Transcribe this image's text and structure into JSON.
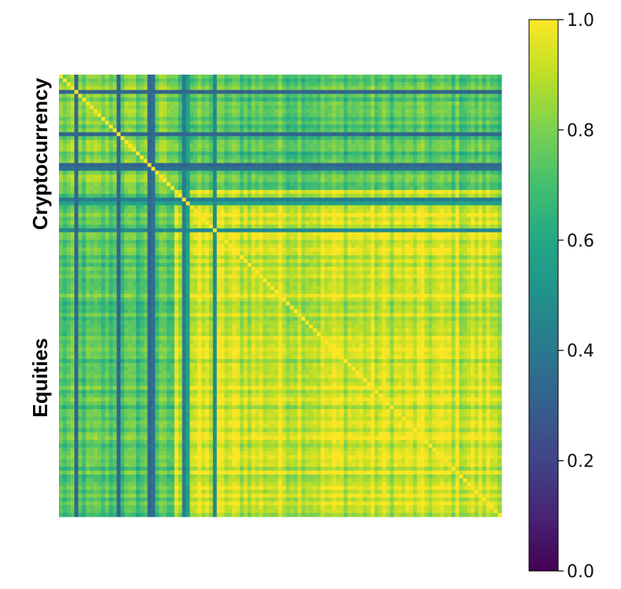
{
  "chart_data": {
    "type": "heatmap",
    "title": "",
    "row_groups": [
      {
        "label": "Cryptocurrency",
        "start": 0,
        "end": 30
      },
      {
        "label": "Equities",
        "start": 30,
        "end": 115
      }
    ],
    "n_assets": 115,
    "value_range": [
      0.0,
      1.0
    ],
    "colormap": "viridis",
    "colorbar": {
      "ticks": [
        0.0,
        0.2,
        0.4,
        0.6,
        0.8,
        1.0
      ],
      "tick_labels": [
        "0.0",
        "0.2",
        "0.4",
        "0.6",
        "0.8",
        "1.0"
      ],
      "placement": "right"
    },
    "block_correlation": {
      "crypto_crypto": 0.78,
      "equity_equity": 0.92,
      "crypto_equity": 0.72
    },
    "low_correlation_assets": [
      {
        "index": 4,
        "value": 0.3
      },
      {
        "index": 15,
        "value": 0.3
      },
      {
        "index": 23,
        "value": 0.3
      },
      {
        "index": 24,
        "value": 0.35
      },
      {
        "index": 32,
        "value": 0.4
      },
      {
        "index": 33,
        "value": 0.55
      },
      {
        "index": 40,
        "value": 0.45
      }
    ],
    "grid": false
  }
}
